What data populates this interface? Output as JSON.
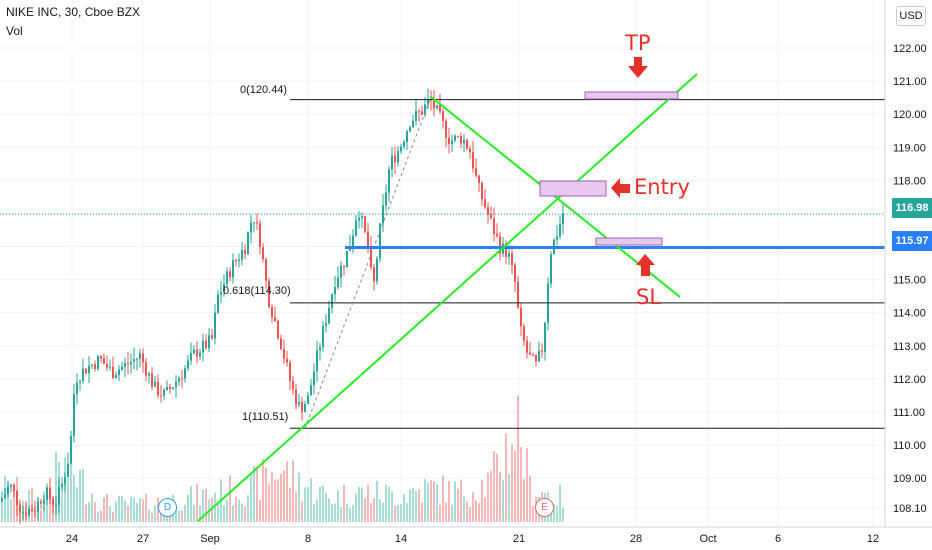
{
  "header": {
    "title": "NIKE INC, 30, Cboe BZX",
    "indicator": "Vol"
  },
  "currency": "USD",
  "current_price": "116.98",
  "level_price": "115.97",
  "annotations": {
    "tp": "TP",
    "entry": "Entry",
    "sl": "SL"
  },
  "fib_labels": {
    "top": "0(120.44)",
    "mid": "0.618(114.30)",
    "bottom": "1(110.51)"
  },
  "event_markers": {
    "dividend": "D",
    "earnings": "E"
  },
  "colors": {
    "up": "#26a69a",
    "down": "#ef5350",
    "trend": "#22ee22",
    "level": "#2a7fff",
    "arrow": "#e5312a",
    "zone_fill": "#e6c8ec",
    "zone_border": "#a060b8"
  },
  "chart_data": {
    "type": "candlestick",
    "y_ticks": [
      "122.00",
      "121.00",
      "120.00",
      "119.00",
      "118.00",
      "117.00",
      "116.00",
      "115.00",
      "114.00",
      "113.00",
      "112.00",
      "111.00",
      "110.00",
      "109.00",
      "108.10"
    ],
    "x_ticks": [
      "24",
      "27",
      "Sep",
      "8",
      "14",
      "21",
      "28",
      "Oct",
      "6",
      "12"
    ],
    "ylim": [
      107.7,
      122.7
    ],
    "price_path": [
      [
        0,
        108.3
      ],
      [
        10,
        108.8
      ],
      [
        22,
        108.0
      ],
      [
        35,
        108.1
      ],
      [
        45,
        108.6
      ],
      [
        55,
        108.2
      ],
      [
        63,
        108.9
      ],
      [
        70,
        109.8
      ],
      [
        75,
        112.0
      ],
      [
        85,
        112.3
      ],
      [
        100,
        112.6
      ],
      [
        112,
        112.2
      ],
      [
        125,
        112.4
      ],
      [
        140,
        112.7
      ],
      [
        155,
        111.7
      ],
      [
        165,
        111.5
      ],
      [
        175,
        111.9
      ],
      [
        185,
        112.3
      ],
      [
        195,
        112.8
      ],
      [
        205,
        113.0
      ],
      [
        212,
        113.2
      ],
      [
        218,
        114.5
      ],
      [
        232,
        115.4
      ],
      [
        245,
        116.0
      ],
      [
        253,
        117.0
      ],
      [
        260,
        116.2
      ],
      [
        268,
        114.5
      ],
      [
        280,
        113.2
      ],
      [
        292,
        111.7
      ],
      [
        300,
        111.1
      ],
      [
        308,
        111.4
      ],
      [
        315,
        112.4
      ],
      [
        325,
        113.7
      ],
      [
        335,
        115.0
      ],
      [
        345,
        115.6
      ],
      [
        352,
        116.3
      ],
      [
        358,
        117.2
      ],
      [
        368,
        116.0
      ],
      [
        373,
        114.6
      ],
      [
        380,
        116.5
      ],
      [
        390,
        118.5
      ],
      [
        400,
        119.0
      ],
      [
        410,
        119.8
      ],
      [
        422,
        120.1
      ],
      [
        430,
        120.45
      ],
      [
        438,
        120.0
      ],
      [
        450,
        119.2
      ],
      [
        462,
        119.3
      ],
      [
        470,
        118.9
      ],
      [
        478,
        117.8
      ],
      [
        490,
        116.8
      ],
      [
        500,
        116.0
      ],
      [
        508,
        115.8
      ],
      [
        515,
        114.9
      ],
      [
        520,
        113.5
      ],
      [
        528,
        112.7
      ],
      [
        536,
        112.4
      ],
      [
        543,
        113.0
      ],
      [
        550,
        115.8
      ],
      [
        558,
        116.5
      ],
      [
        563,
        117.0
      ]
    ],
    "volume_profile": [
      [
        0,
        0.35
      ],
      [
        20,
        0.3
      ],
      [
        40,
        0.2
      ],
      [
        60,
        0.55
      ],
      [
        75,
        0.5
      ],
      [
        100,
        0.2
      ],
      [
        130,
        0.18
      ],
      [
        160,
        0.2
      ],
      [
        190,
        0.25
      ],
      [
        220,
        0.3
      ],
      [
        250,
        0.35
      ],
      [
        280,
        0.55
      ],
      [
        300,
        0.4
      ],
      [
        330,
        0.25
      ],
      [
        360,
        0.3
      ],
      [
        400,
        0.28
      ],
      [
        430,
        0.35
      ],
      [
        460,
        0.3
      ],
      [
        490,
        0.4
      ],
      [
        518,
        1.0
      ],
      [
        530,
        0.35
      ],
      [
        560,
        0.25
      ]
    ],
    "fib_levels": [
      {
        "ratio": "0",
        "value": 120.44
      },
      {
        "ratio": "0.618",
        "value": 114.3
      },
      {
        "ratio": "1",
        "value": 110.51
      }
    ],
    "horizontal_level": 115.97,
    "last_price": 116.98,
    "grid": true
  }
}
